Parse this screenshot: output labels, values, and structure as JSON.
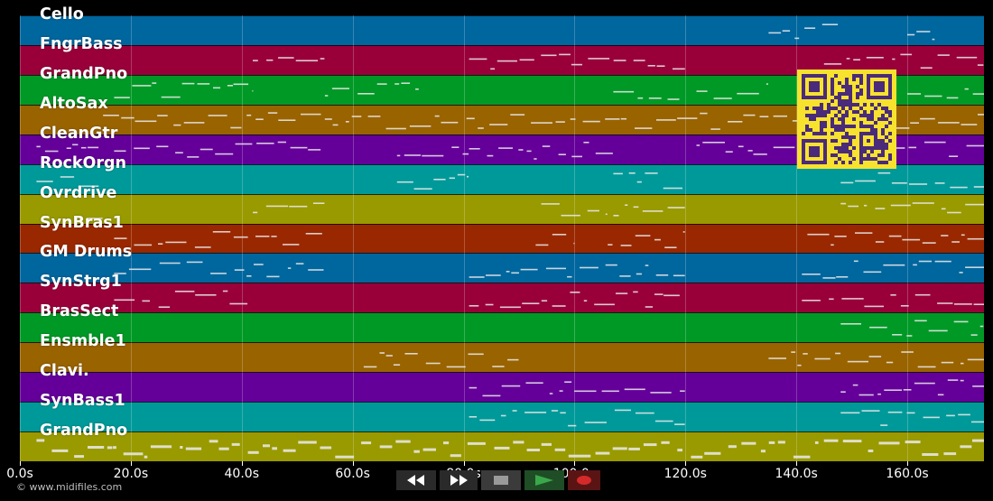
{
  "window": {
    "background": "#000000"
  },
  "tracks": [
    {
      "name": "Cello",
      "color": "#00669e"
    },
    {
      "name": "FngrBass",
      "color": "#99003a"
    },
    {
      "name": "GrandPno",
      "color": "#009926"
    },
    {
      "name": "AltoSax",
      "color": "#996300"
    },
    {
      "name": "CleanGtr",
      "color": "#640099"
    },
    {
      "name": "RockOrgn",
      "color": "#009999"
    },
    {
      "name": "Ovrdrive",
      "color": "#999900"
    },
    {
      "name": "SynBras1",
      "color": "#992800"
    },
    {
      "name": "GM Drums",
      "color": "#00669e"
    },
    {
      "name": "SynStrg1",
      "color": "#99003a"
    },
    {
      "name": "BrasSect",
      "color": "#009926"
    },
    {
      "name": "Ensmble1",
      "color": "#996300"
    },
    {
      "name": "Clavi.",
      "color": "#640099"
    },
    {
      "name": "SynBass1",
      "color": "#009999"
    },
    {
      "name": "GrandPno",
      "color": "#999900"
    }
  ],
  "timeline": {
    "ticks": [
      "0.0s",
      "20.0s",
      "40.0s",
      "60.0s",
      "80.0s",
      "100.0s",
      "120.0s",
      "140.0s",
      "160.0s"
    ],
    "tick_values": [
      0,
      20,
      40,
      60,
      80,
      100,
      120,
      140,
      160
    ],
    "max_seconds": 174
  },
  "transport": {
    "rewind_icon": "rewind-icon",
    "fast_forward_icon": "fast-forward-icon",
    "stop_icon": "stop-icon",
    "play_icon": "play-icon",
    "record_icon": "record-icon",
    "play_color": "#3aa84a",
    "record_color": "#d62a2a"
  },
  "overlay": {
    "qr_color": "#f7e22e",
    "qr_dark": "#4a2a7a"
  },
  "footer": {
    "copyright": "© www.midifiles.com"
  }
}
